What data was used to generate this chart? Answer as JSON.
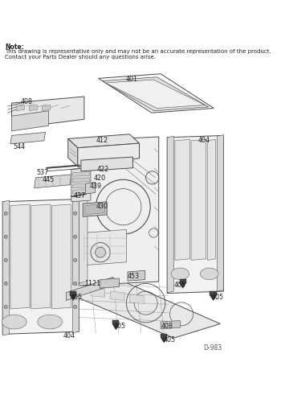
{
  "bg_color": "#ffffff",
  "note_title": "Note:",
  "note_line1": "This drawing is representative only and may not be an accurate representation of the product.",
  "note_line2": "Contact your Parts Dealer should any questions arise.",
  "diagram_id": "D-983",
  "note_fontsize": 5.5,
  "diagram_id_fontsize": 5.5,
  "label_fontsize": 5.8,
  "label_color": "#222222"
}
